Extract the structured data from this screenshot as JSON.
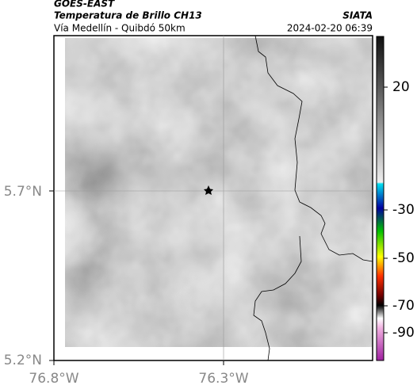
{
  "header": {
    "source": "GOES-EAST",
    "product": "Temperatura de Brillo CH13",
    "agency": "SIATA",
    "region": "Vía Medellín - Quibdó 50km",
    "timestamp": "2024-02-20 06:39"
  },
  "map": {
    "lat_labels": [
      "5.7°N",
      "5.2°N"
    ],
    "lon_labels": [
      "76.8°W",
      "76.3°W"
    ]
  },
  "colorbar": {
    "labels": [
      "20",
      "-30",
      "-50",
      "-70",
      "-90"
    ]
  }
}
